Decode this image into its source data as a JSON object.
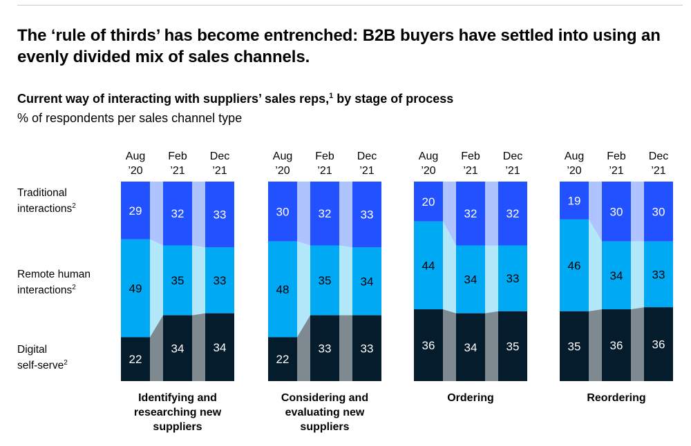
{
  "header": {
    "title": "The ‘rule of thirds’ has become entrenched: B2B buyers have settled into using an evenly divided mix of sales channels.",
    "subtitle": "Current way of interacting with suppliers’ sales reps,",
    "subtitle_note": "1",
    "subtitle_tail": " by stage of process",
    "unit": "% of respondents per sales channel type"
  },
  "row_labels": [
    {
      "line1": "Traditional",
      "line2": "interactions",
      "note": "2"
    },
    {
      "line1": "Remote human",
      "line2": "interactions",
      "note": "2"
    },
    {
      "line1": "Digital",
      "line2": "self-serve",
      "note": "2"
    }
  ],
  "chart_data": {
    "type": "bar",
    "stacked": true,
    "normalized_to": 100,
    "period_labels": [
      [
        "Aug",
        "’20"
      ],
      [
        "Feb",
        "’21"
      ],
      [
        "Dec",
        "’21"
      ]
    ],
    "series_order_top_to_bottom": [
      "Traditional interactions",
      "Remote human interactions",
      "Digital self-serve"
    ],
    "colors": {
      "Traditional interactions": "#2251ff",
      "Remote human interactions": "#00a9f4",
      "Digital self-serve": "#051c2c",
      "bridge_traditional": "#afc3ff",
      "bridge_remote": "#b3e8fb",
      "bridge_digital": "#7f8990"
    },
    "groups": [
      {
        "label": [
          "Identifying and",
          "researching new",
          "suppliers"
        ],
        "Traditional interactions": [
          29,
          32,
          33
        ],
        "Remote human interactions": [
          49,
          35,
          33
        ],
        "Digital self-serve": [
          22,
          34,
          34
        ]
      },
      {
        "label": [
          "Considering and",
          "evaluating new",
          "suppliers"
        ],
        "Traditional interactions": [
          30,
          32,
          33
        ],
        "Remote human interactions": [
          48,
          35,
          34
        ],
        "Digital self-serve": [
          22,
          33,
          33
        ]
      },
      {
        "label": [
          "Ordering"
        ],
        "Traditional interactions": [
          20,
          32,
          32
        ],
        "Remote human interactions": [
          44,
          34,
          33
        ],
        "Digital self-serve": [
          36,
          34,
          35
        ]
      },
      {
        "label": [
          "Reordering"
        ],
        "Traditional interactions": [
          19,
          30,
          30
        ],
        "Remote human interactions": [
          46,
          34,
          33
        ],
        "Digital self-serve": [
          35,
          36,
          36
        ]
      }
    ]
  }
}
